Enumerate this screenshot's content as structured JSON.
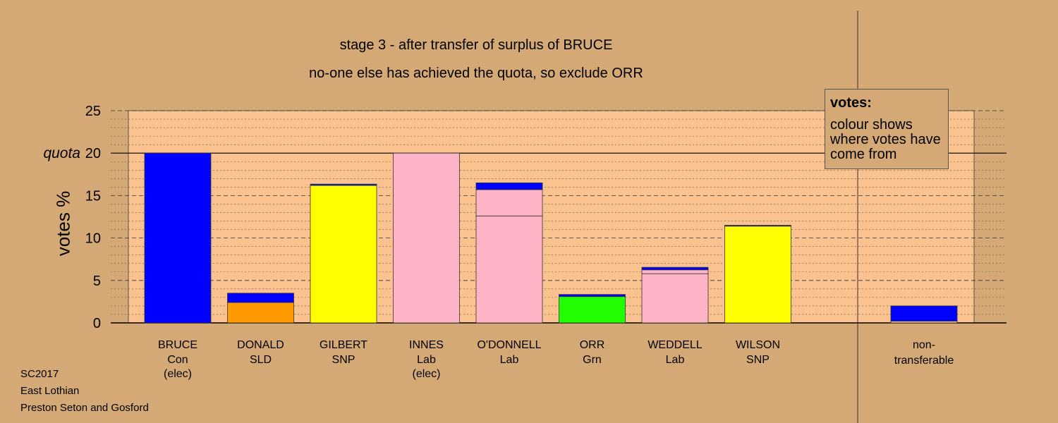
{
  "title": "stage 3 - after transfer of surplus of BRUCE",
  "subtitle": "no-one else has achieved the quota, so exclude ORR",
  "ylabel": "votes %",
  "quota_label": "quota",
  "legend": {
    "title": "votes:",
    "body": "colour shows where votes have come from"
  },
  "footer": {
    "line1": "SC2017",
    "line2": "East Lothian",
    "line3": "Preston Seton and Gosford"
  },
  "colors": {
    "background": "#d4a976",
    "plot_area": "#f9c28e",
    "Con": "#0000ff",
    "SLD": "#ff9900",
    "SNP": "#ffff00",
    "Lab": "#ffb3c6",
    "Grn": "#22ff00"
  },
  "chart_data": {
    "type": "bar",
    "stacked": true,
    "ylim": [
      0,
      25
    ],
    "yticks": [
      0,
      5,
      10,
      15,
      20,
      25
    ],
    "quota": 20,
    "grid": true,
    "candidates": [
      {
        "name": "BRUCE",
        "party": "Con",
        "note": "(elec)",
        "segments": [
          {
            "party": "Con",
            "value": 20.0
          }
        ]
      },
      {
        "name": "DONALD",
        "party": "SLD",
        "note": "",
        "segments": [
          {
            "party": "SLD",
            "value": 2.4
          },
          {
            "party": "Con",
            "value": 1.1
          }
        ]
      },
      {
        "name": "GILBERT",
        "party": "SNP",
        "note": "",
        "segments": [
          {
            "party": "SNP",
            "value": 16.2
          },
          {
            "party": "Con",
            "value": 0.15
          }
        ]
      },
      {
        "name": "INNES",
        "party": "Lab",
        "note": "(elec)",
        "segments": [
          {
            "party": "Lab",
            "value": 20.0
          }
        ]
      },
      {
        "name": "O'DONNELL",
        "party": "Lab",
        "note": "",
        "segments": [
          {
            "party": "Lab",
            "value": 12.6
          },
          {
            "party": "Lab",
            "value": 3.1
          },
          {
            "party": "Con",
            "value": 0.8
          }
        ]
      },
      {
        "name": "ORR",
        "party": "Grn",
        "note": "",
        "segments": [
          {
            "party": "Grn",
            "value": 3.1
          },
          {
            "party": "Con",
            "value": 0.25
          }
        ]
      },
      {
        "name": "WEDDELL",
        "party": "Lab",
        "note": "",
        "segments": [
          {
            "party": "Lab",
            "value": 5.8
          },
          {
            "party": "Lab",
            "value": 0.45
          },
          {
            "party": "Con",
            "value": 0.3
          }
        ]
      },
      {
        "name": "WILSON",
        "party": "SNP",
        "note": "",
        "segments": [
          {
            "party": "SNP",
            "value": 11.4
          },
          {
            "party": "Con",
            "value": 0.1
          }
        ]
      }
    ],
    "nontransferable": {
      "label_line1": "non-",
      "label_line2": "transferable",
      "segments": [
        {
          "party": "none",
          "value": 0.2
        },
        {
          "party": "Con",
          "value": 1.8
        }
      ]
    }
  }
}
